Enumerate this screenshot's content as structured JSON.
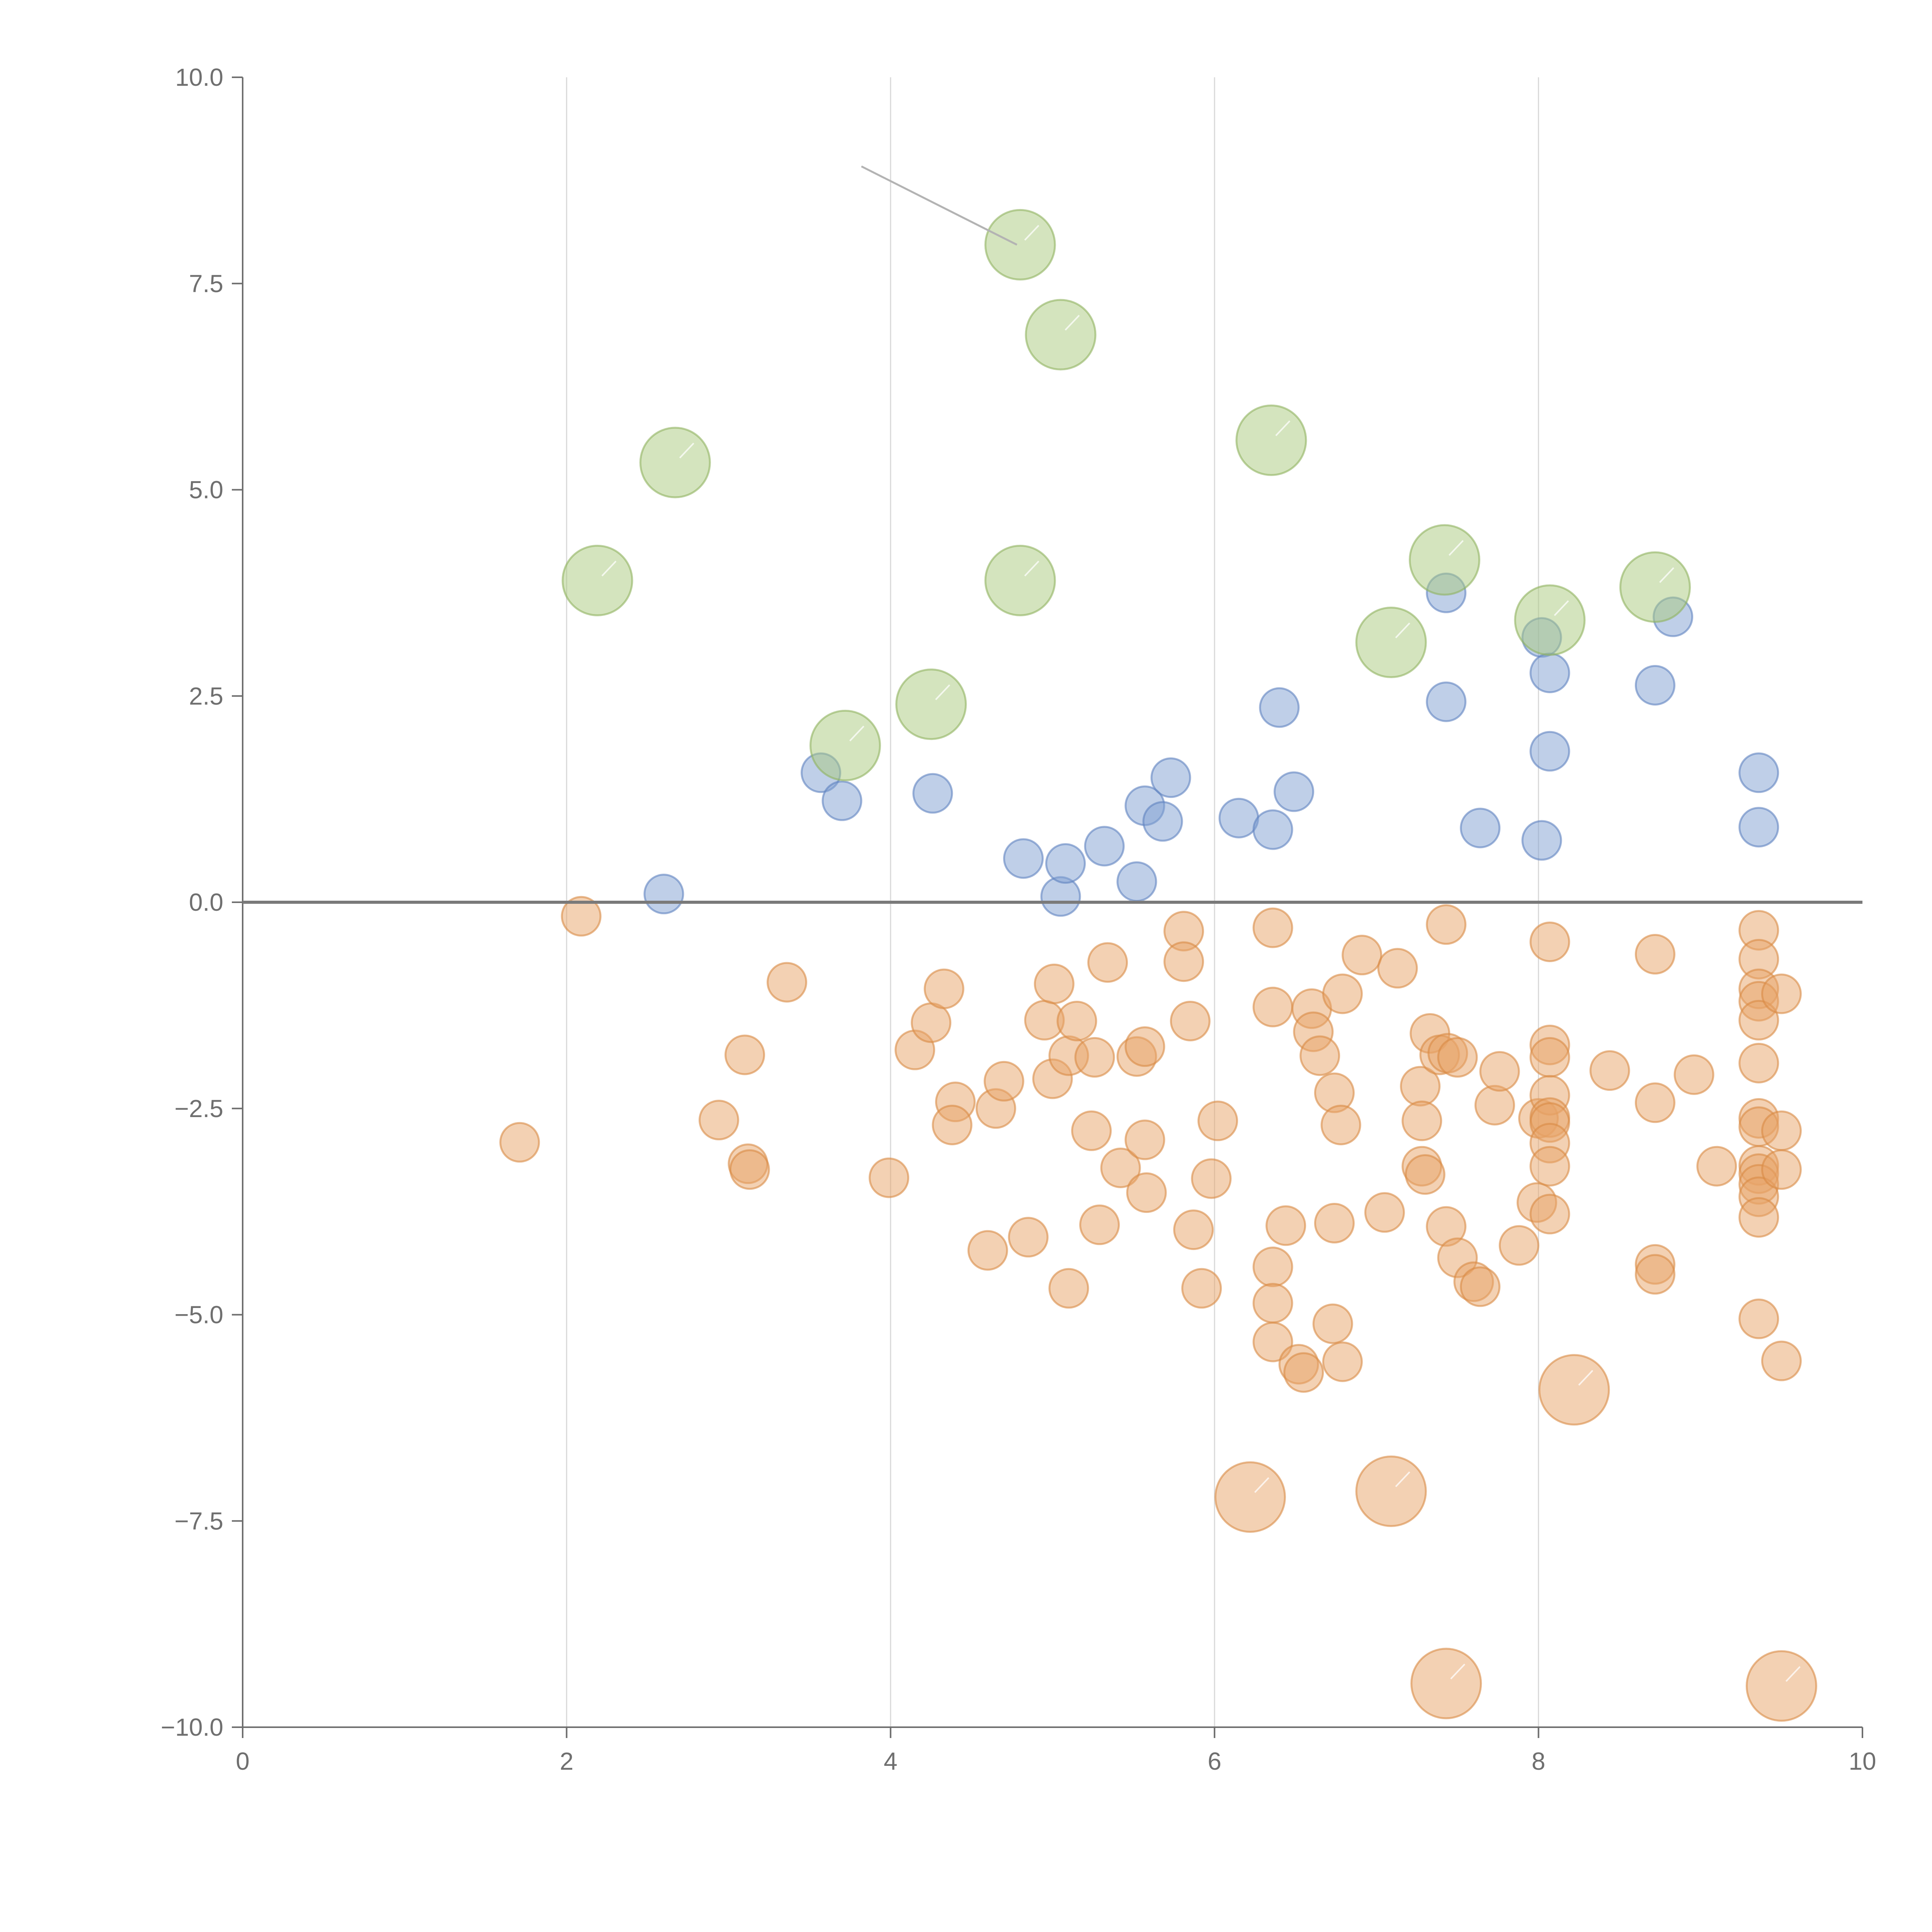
{
  "chart_data": {
    "type": "scatter",
    "title": "",
    "xlabel": "",
    "ylabel": "",
    "xlim": [
      0,
      10
    ],
    "ylim": [
      -10,
      10
    ],
    "x_ticks": [
      0,
      2,
      4,
      6,
      8,
      10
    ],
    "x_tick_labels": [
      "0",
      "2",
      "4",
      "6",
      "8",
      "10"
    ],
    "y_ticks": [
      10,
      7.5,
      5,
      2.5,
      0,
      -2.5,
      -5,
      -7.5,
      -10
    ],
    "y_tick_labels": [
      "10.0",
      "7.5",
      "5.0",
      "2.5",
      "0.0",
      "−2.5",
      "−5.0",
      "−7.5",
      "−10.0"
    ],
    "vertical_grid_at": [
      2,
      4,
      6,
      8
    ],
    "zero_line_y": 0,
    "leader_line": {
      "from": [
        3.82,
        8.92
      ],
      "to": [
        4.78,
        7.97
      ]
    },
    "series": [
      {
        "name": "large-green",
        "color": "#a9c97e",
        "stroke": "#8fb35f",
        "size": "large",
        "points": [
          [
            4.8,
            7.97
          ],
          [
            5.05,
            6.88
          ],
          [
            2.67,
            5.33
          ],
          [
            6.35,
            5.6
          ],
          [
            2.19,
            3.9
          ],
          [
            4.8,
            3.9
          ],
          [
            7.42,
            4.15
          ],
          [
            8.07,
            3.42
          ],
          [
            8.72,
            3.82
          ],
          [
            7.09,
            3.15
          ],
          [
            3.72,
            1.9
          ],
          [
            4.25,
            2.4
          ]
        ]
      },
      {
        "name": "small-blue",
        "color": "#7f9fd1",
        "stroke": "#5f82bf",
        "size": "small",
        "points": [
          [
            2.6,
            0.1
          ],
          [
            3.57,
            1.57
          ],
          [
            3.7,
            1.23
          ],
          [
            4.26,
            1.32
          ],
          [
            4.82,
            0.53
          ],
          [
            5.05,
            0.07
          ],
          [
            5.08,
            0.47
          ],
          [
            5.32,
            0.68
          ],
          [
            5.52,
            0.25
          ],
          [
            5.57,
            1.17
          ],
          [
            5.68,
            0.98
          ],
          [
            5.73,
            1.51
          ],
          [
            6.15,
            1.02
          ],
          [
            6.36,
            0.88
          ],
          [
            6.4,
            2.36
          ],
          [
            6.49,
            1.34
          ],
          [
            7.43,
            3.75
          ],
          [
            7.43,
            2.43
          ],
          [
            7.64,
            0.9
          ],
          [
            8.02,
            3.21
          ],
          [
            8.02,
            0.75
          ],
          [
            8.07,
            2.78
          ],
          [
            8.07,
            1.83
          ],
          [
            8.72,
            2.63
          ],
          [
            8.83,
            3.46
          ],
          [
            9.36,
            1.57
          ],
          [
            9.36,
            0.91
          ]
        ]
      },
      {
        "name": "small-orange",
        "color": "#e8a468",
        "stroke": "#d98a44",
        "size": "small",
        "points": [
          [
            2.09,
            -0.17
          ],
          [
            1.71,
            -2.91
          ],
          [
            2.94,
            -2.64
          ],
          [
            3.1,
            -1.85
          ],
          [
            3.12,
            -3.17
          ],
          [
            3.13,
            -3.24
          ],
          [
            3.36,
            -0.97
          ],
          [
            3.99,
            -3.34
          ],
          [
            4.15,
            -1.79
          ],
          [
            4.25,
            -1.46
          ],
          [
            4.33,
            -1.05
          ],
          [
            4.4,
            -2.42
          ],
          [
            4.38,
            -2.7
          ],
          [
            4.6,
            -4.22
          ],
          [
            4.65,
            -2.5
          ],
          [
            4.7,
            -2.17
          ],
          [
            4.85,
            -4.06
          ],
          [
            4.95,
            -1.43
          ],
          [
            5.0,
            -2.14
          ],
          [
            5.01,
            -0.99
          ],
          [
            5.1,
            -4.68
          ],
          [
            5.1,
            -1.86
          ],
          [
            5.15,
            -1.44
          ],
          [
            5.24,
            -2.77
          ],
          [
            5.26,
            -1.88
          ],
          [
            5.29,
            -3.91
          ],
          [
            5.34,
            -0.73
          ],
          [
            5.42,
            -3.22
          ],
          [
            5.52,
            -1.87
          ],
          [
            5.57,
            -1.75
          ],
          [
            5.57,
            -2.88
          ],
          [
            5.58,
            -3.52
          ],
          [
            5.81,
            -0.35
          ],
          [
            5.81,
            -0.72
          ],
          [
            5.85,
            -1.44
          ],
          [
            5.87,
            -3.97
          ],
          [
            5.92,
            -4.68
          ],
          [
            5.98,
            -3.35
          ],
          [
            6.02,
            -2.65
          ],
          [
            6.36,
            -0.31
          ],
          [
            6.36,
            -1.27
          ],
          [
            6.36,
            -4.42
          ],
          [
            6.36,
            -4.86
          ],
          [
            6.36,
            -5.33
          ],
          [
            6.44,
            -3.92
          ],
          [
            6.52,
            -5.6
          ],
          [
            6.55,
            -5.7
          ],
          [
            6.6,
            -1.29
          ],
          [
            6.61,
            -1.57
          ],
          [
            6.65,
            -1.86
          ],
          [
            6.74,
            -2.31
          ],
          [
            6.74,
            -3.89
          ],
          [
            6.73,
            -5.11
          ],
          [
            6.79,
            -5.57
          ],
          [
            6.78,
            -2.7
          ],
          [
            6.79,
            -1.11
          ],
          [
            6.91,
            -0.64
          ],
          [
            7.05,
            -3.76
          ],
          [
            7.13,
            -0.8
          ],
          [
            7.27,
            -2.23
          ],
          [
            7.28,
            -2.65
          ],
          [
            7.28,
            -3.2
          ],
          [
            7.3,
            -3.3
          ],
          [
            7.33,
            -1.59
          ],
          [
            7.39,
            -1.85
          ],
          [
            7.44,
            -1.83
          ],
          [
            7.5,
            -1.88
          ],
          [
            7.43,
            -0.27
          ],
          [
            7.43,
            -3.93
          ],
          [
            7.5,
            -4.31
          ],
          [
            7.6,
            -4.6
          ],
          [
            7.64,
            -4.66
          ],
          [
            7.73,
            -2.46
          ],
          [
            7.76,
            -2.05
          ],
          [
            7.88,
            -4.16
          ],
          [
            7.99,
            -3.64
          ],
          [
            8.0,
            -2.62
          ],
          [
            8.07,
            -0.48
          ],
          [
            8.07,
            -1.73
          ],
          [
            8.07,
            -1.88
          ],
          [
            8.07,
            -2.34
          ],
          [
            8.07,
            -2.61
          ],
          [
            8.07,
            -2.67
          ],
          [
            8.07,
            -2.92
          ],
          [
            8.07,
            -3.2
          ],
          [
            8.07,
            -3.78
          ],
          [
            8.44,
            -2.04
          ],
          [
            8.72,
            -0.63
          ],
          [
            8.72,
            -2.43
          ],
          [
            8.72,
            -4.39
          ],
          [
            8.72,
            -4.51
          ],
          [
            8.96,
            -2.09
          ],
          [
            9.1,
            -3.2
          ],
          [
            9.36,
            -0.34
          ],
          [
            9.36,
            -0.69
          ],
          [
            9.36,
            -1.05
          ],
          [
            9.36,
            -1.2
          ],
          [
            9.36,
            -1.43
          ],
          [
            9.36,
            -1.95
          ],
          [
            9.36,
            -2.62
          ],
          [
            9.36,
            -2.72
          ],
          [
            9.36,
            -3.19
          ],
          [
            9.36,
            -3.29
          ],
          [
            9.36,
            -3.42
          ],
          [
            9.36,
            -3.57
          ],
          [
            9.36,
            -3.82
          ],
          [
            9.36,
            -5.05
          ],
          [
            9.5,
            -1.11
          ],
          [
            9.5,
            -2.77
          ],
          [
            9.5,
            -3.24
          ],
          [
            9.5,
            -5.56
          ]
        ]
      },
      {
        "name": "large-orange",
        "color": "#e8a468",
        "stroke": "#d98a44",
        "size": "large",
        "points": [
          [
            6.22,
            -7.21
          ],
          [
            7.09,
            -7.14
          ],
          [
            8.22,
            -5.91
          ],
          [
            7.43,
            -9.47
          ],
          [
            9.5,
            -9.5
          ]
        ]
      }
    ]
  }
}
